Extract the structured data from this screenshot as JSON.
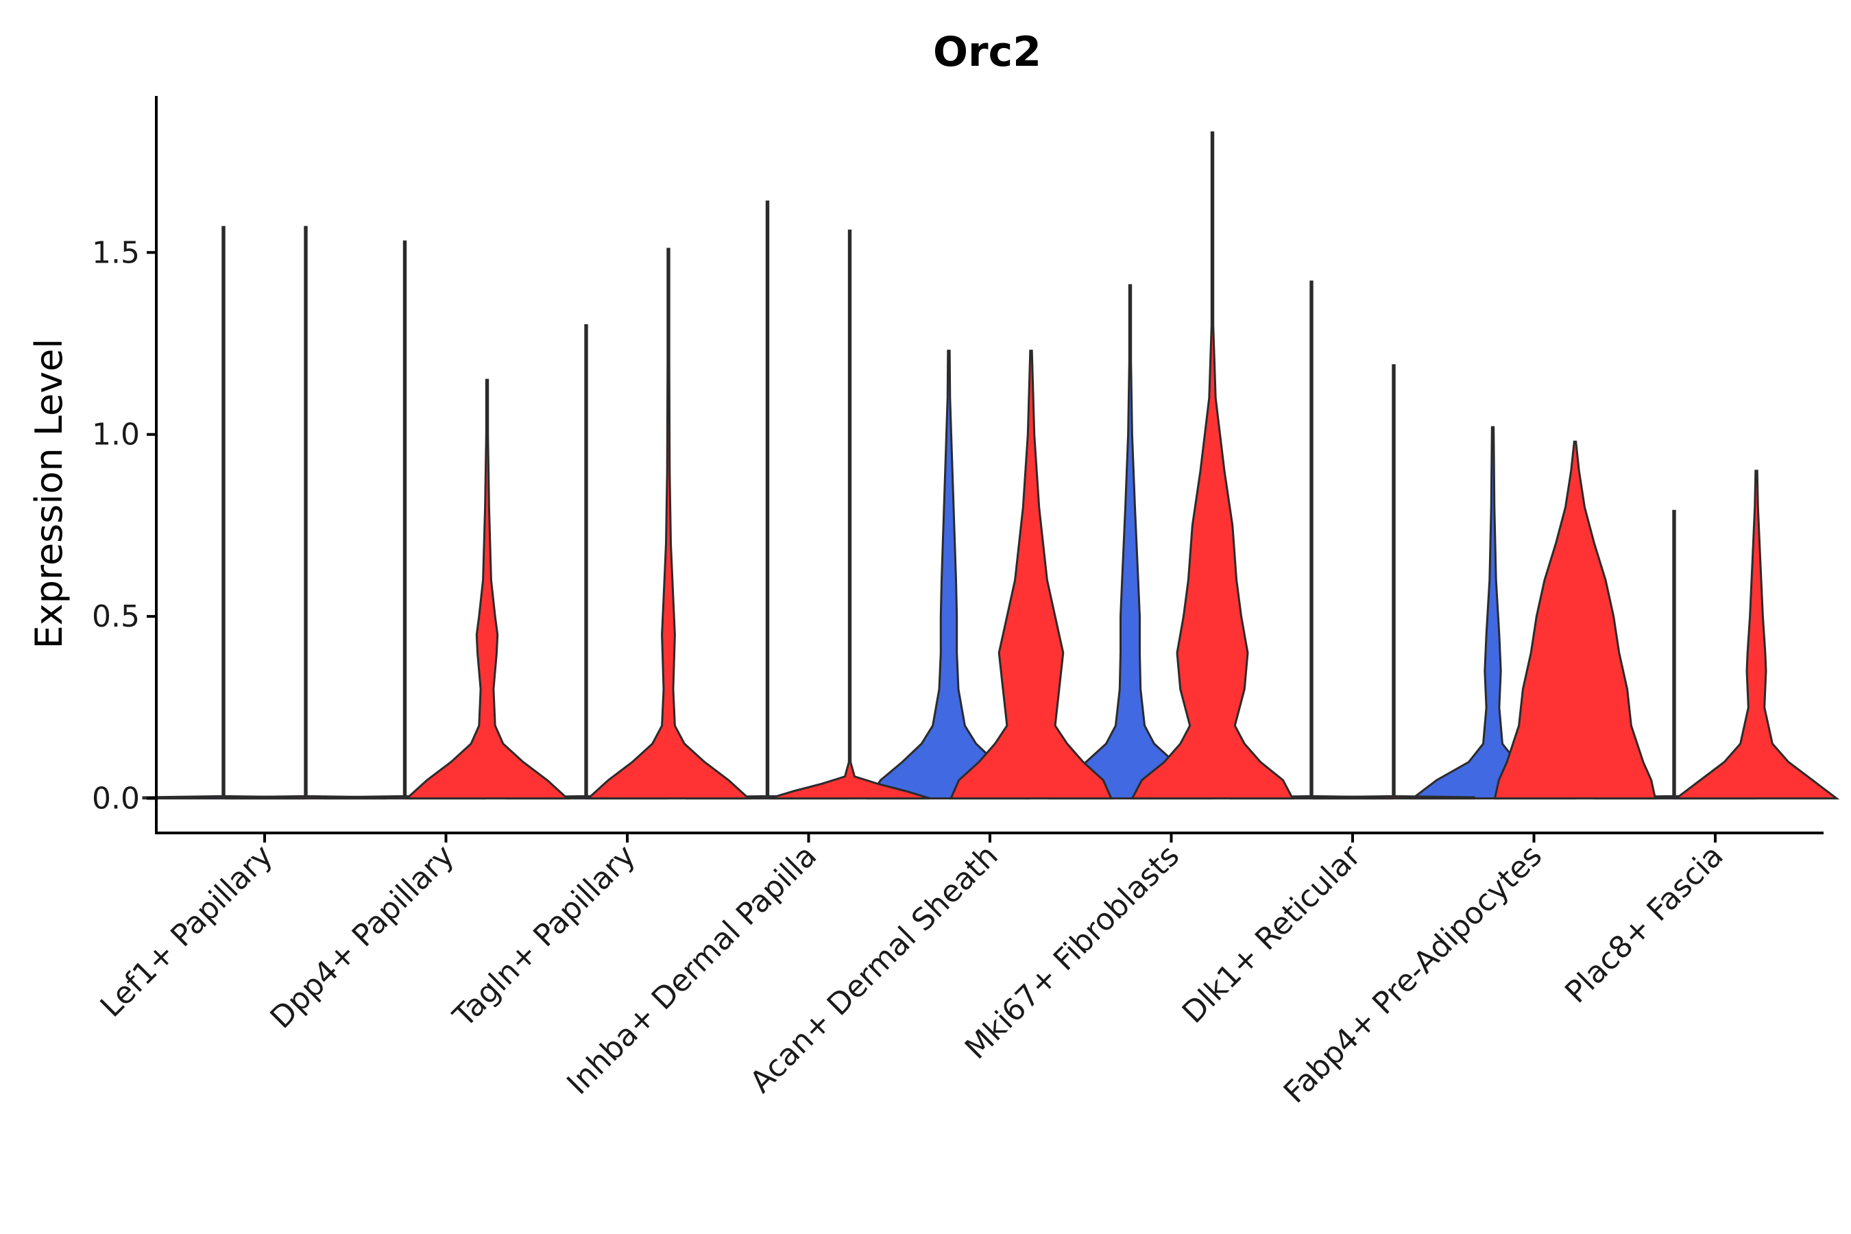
{
  "chart_data": {
    "type": "violin",
    "title": "Orc2",
    "xlabel": "",
    "ylabel": "Expression Level",
    "ylim": [
      -0.095,
      1.93
    ],
    "yticks": [
      "0.0",
      "0.5",
      "1.0",
      "1.5"
    ],
    "categories": [
      "Lef1+ Papillary",
      "Dpp4+ Papillary",
      "Tagln+ Papillary",
      "Inhba+ Dermal Papilla",
      "Acan+ Dermal Sheath",
      "Mki67+ Fibroblasts",
      "Dlk1+ Reticular",
      "Fabp4+ Pre-Adipocytes",
      "Plac8+ Fascia"
    ],
    "series": [
      {
        "name": "group-blue",
        "color": "#4169E1",
        "max_values": [
          1.57,
          1.53,
          1.3,
          1.64,
          1.23,
          1.41,
          1.42,
          1.02,
          0.79
        ],
        "profiles": [
          [
            [
              0,
              1.0
            ],
            [
              0.003,
              1.0
            ],
            [
              0.006,
              0.003
            ],
            [
              1.57,
              0.003
            ]
          ],
          [
            [
              0,
              1.0
            ],
            [
              0.003,
              1.0
            ],
            [
              0.006,
              0.003
            ],
            [
              1.53,
              0.003
            ]
          ],
          [
            [
              0,
              1.0
            ],
            [
              0.003,
              1.0
            ],
            [
              0.006,
              0.003
            ],
            [
              1.3,
              0.003
            ]
          ],
          [
            [
              0,
              1.0
            ],
            [
              0.003,
              1.0
            ],
            [
              0.006,
              0.003
            ],
            [
              1.64,
              0.003
            ]
          ],
          [
            [
              0,
              1.0
            ],
            [
              0.05,
              0.85
            ],
            [
              0.1,
              0.58
            ],
            [
              0.15,
              0.34
            ],
            [
              0.2,
              0.2
            ],
            [
              0.3,
              0.12
            ],
            [
              0.4,
              0.1
            ],
            [
              0.5,
              0.1
            ],
            [
              0.6,
              0.09
            ],
            [
              0.8,
              0.06
            ],
            [
              1.0,
              0.03
            ],
            [
              1.1,
              0.015
            ],
            [
              1.23,
              0.005
            ]
          ],
          [
            [
              0,
              1.0
            ],
            [
              0.05,
              0.85
            ],
            [
              0.1,
              0.55
            ],
            [
              0.15,
              0.3
            ],
            [
              0.2,
              0.18
            ],
            [
              0.3,
              0.13
            ],
            [
              0.4,
              0.12
            ],
            [
              0.5,
              0.12
            ],
            [
              0.6,
              0.1
            ],
            [
              0.8,
              0.06
            ],
            [
              1.0,
              0.025
            ],
            [
              1.2,
              0.01
            ],
            [
              1.41,
              0.005
            ]
          ],
          [
            [
              0,
              1.0
            ],
            [
              0.003,
              1.0
            ],
            [
              0.006,
              0.003
            ],
            [
              1.42,
              0.003
            ]
          ],
          [
            [
              0,
              1.0
            ],
            [
              0.05,
              0.7
            ],
            [
              0.1,
              0.3
            ],
            [
              0.15,
              0.12
            ],
            [
              0.25,
              0.08
            ],
            [
              0.35,
              0.1
            ],
            [
              0.45,
              0.08
            ],
            [
              0.6,
              0.04
            ],
            [
              0.8,
              0.02
            ],
            [
              1.02,
              0.005
            ]
          ],
          [
            [
              0,
              1.0
            ],
            [
              0.003,
              1.0
            ],
            [
              0.006,
              0.003
            ],
            [
              0.79,
              0.003
            ]
          ]
        ]
      },
      {
        "name": "group-red",
        "color": "#FF3333",
        "max_values": [
          1.57,
          1.15,
          1.51,
          1.56,
          1.23,
          1.83,
          1.19,
          0.98,
          0.9
        ],
        "profiles": [
          [
            [
              0,
              1.0
            ],
            [
              0.003,
              1.0
            ],
            [
              0.006,
              0.003
            ],
            [
              1.57,
              0.003
            ]
          ],
          [
            [
              0,
              1.0
            ],
            [
              0.05,
              0.75
            ],
            [
              0.1,
              0.45
            ],
            [
              0.15,
              0.2
            ],
            [
              0.2,
              0.1
            ],
            [
              0.3,
              0.08
            ],
            [
              0.4,
              0.12
            ],
            [
              0.45,
              0.13
            ],
            [
              0.5,
              0.1
            ],
            [
              0.6,
              0.05
            ],
            [
              0.8,
              0.025
            ],
            [
              1.0,
              0.01
            ],
            [
              1.15,
              0.005
            ]
          ],
          [
            [
              0,
              1.0
            ],
            [
              0.05,
              0.75
            ],
            [
              0.1,
              0.45
            ],
            [
              0.15,
              0.2
            ],
            [
              0.2,
              0.08
            ],
            [
              0.3,
              0.06
            ],
            [
              0.45,
              0.08
            ],
            [
              0.55,
              0.06
            ],
            [
              0.7,
              0.03
            ],
            [
              0.9,
              0.015
            ],
            [
              1.2,
              0.008
            ],
            [
              1.51,
              0.004
            ]
          ],
          [
            [
              0,
              1.0
            ],
            [
              0.02,
              0.7
            ],
            [
              0.04,
              0.35
            ],
            [
              0.06,
              0.06
            ],
            [
              0.1,
              0.01
            ],
            [
              0.5,
              0.006
            ],
            [
              0.8,
              0.006
            ],
            [
              1.0,
              0.006
            ],
            [
              1.56,
              0.004
            ]
          ],
          [
            [
              0,
              1.0
            ],
            [
              0.05,
              0.9
            ],
            [
              0.1,
              0.65
            ],
            [
              0.15,
              0.45
            ],
            [
              0.2,
              0.3
            ],
            [
              0.3,
              0.35
            ],
            [
              0.4,
              0.4
            ],
            [
              0.5,
              0.3
            ],
            [
              0.6,
              0.2
            ],
            [
              0.8,
              0.1
            ],
            [
              1.0,
              0.04
            ],
            [
              1.23,
              0.01
            ]
          ],
          [
            [
              0,
              1.0
            ],
            [
              0.05,
              0.88
            ],
            [
              0.1,
              0.6
            ],
            [
              0.15,
              0.4
            ],
            [
              0.2,
              0.28
            ],
            [
              0.3,
              0.4
            ],
            [
              0.4,
              0.44
            ],
            [
              0.5,
              0.36
            ],
            [
              0.6,
              0.3
            ],
            [
              0.75,
              0.25
            ],
            [
              0.9,
              0.15
            ],
            [
              1.1,
              0.04
            ],
            [
              1.3,
              0.01
            ],
            [
              1.83,
              0.005
            ]
          ],
          [
            [
              0,
              1.0
            ],
            [
              0.003,
              1.0
            ],
            [
              0.006,
              0.003
            ],
            [
              1.19,
              0.003
            ]
          ],
          [
            [
              0,
              1.0
            ],
            [
              0.05,
              0.95
            ],
            [
              0.1,
              0.85
            ],
            [
              0.2,
              0.7
            ],
            [
              0.3,
              0.65
            ],
            [
              0.4,
              0.55
            ],
            [
              0.5,
              0.48
            ],
            [
              0.6,
              0.38
            ],
            [
              0.7,
              0.24
            ],
            [
              0.8,
              0.12
            ],
            [
              0.9,
              0.05
            ],
            [
              0.98,
              0.01
            ]
          ],
          [
            [
              0,
              1.0
            ],
            [
              0.05,
              0.7
            ],
            [
              0.1,
              0.4
            ],
            [
              0.15,
              0.2
            ],
            [
              0.25,
              0.1
            ],
            [
              0.35,
              0.12
            ],
            [
              0.4,
              0.11
            ],
            [
              0.5,
              0.08
            ],
            [
              0.65,
              0.05
            ],
            [
              0.8,
              0.02
            ],
            [
              0.9,
              0.005
            ]
          ]
        ]
      }
    ]
  }
}
